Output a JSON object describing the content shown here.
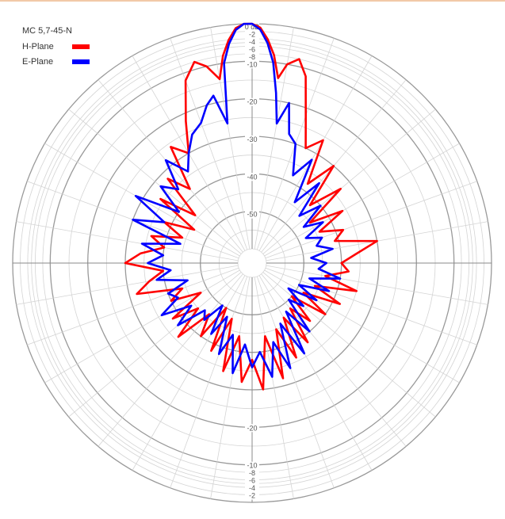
{
  "chart_data": {
    "type": "polar-line",
    "title": "MC 5,7-45-N",
    "radial_axis": {
      "unit": "dB",
      "range_db": [
        -60,
        0
      ],
      "upper_tick_labels": [
        "0 dB",
        "-2",
        "-4",
        "-6",
        "-8",
        "-10",
        "-20",
        "-30",
        "-40",
        "-50"
      ],
      "upper_tick_values": [
        0,
        -2,
        -4,
        -6,
        -8,
        -10,
        -20,
        -30,
        -40,
        -50
      ],
      "lower_tick_labels": [
        "-20",
        "-10",
        "-8",
        "-6",
        "-4",
        "-2"
      ],
      "lower_tick_values": [
        -20,
        -10,
        -8,
        -6,
        -4,
        -2
      ]
    },
    "angular_grid_step_deg": 10,
    "grid": true,
    "legend_position": "top-left",
    "series": [
      {
        "name": "H-Plane",
        "color": "#ff0000",
        "angles_deg": [
          0,
          2,
          4,
          6,
          8,
          10,
          13,
          16,
          20,
          25,
          30,
          35,
          40,
          45,
          50,
          55,
          60,
          65,
          70,
          75,
          80,
          85,
          90,
          95,
          100,
          105,
          110,
          115,
          120,
          125,
          130,
          135,
          140,
          145,
          150,
          155,
          160,
          165,
          170,
          175,
          180,
          185,
          190,
          195,
          200,
          205,
          210,
          215,
          220,
          225,
          230,
          235,
          240,
          245,
          250,
          255,
          260,
          265,
          270,
          275,
          280,
          285,
          290,
          295,
          300,
          305,
          310,
          315,
          320,
          325,
          330,
          335,
          340,
          344,
          347,
          350,
          352,
          354,
          356,
          358
        ],
        "gain_db": [
          0,
          -1,
          -4,
          -8,
          -14,
          -10,
          -8,
          -12,
          -22,
          -30,
          -26,
          -38,
          -30,
          -42,
          -33,
          -45,
          -36,
          -44,
          -38,
          -41,
          -30,
          -36,
          -40,
          -38,
          -44,
          -35,
          -46,
          -38,
          -48,
          -40,
          -50,
          -42,
          -48,
          -38,
          -47,
          -36,
          -45,
          -32,
          -44,
          -30,
          -38,
          -32,
          -44,
          -34,
          -48,
          -38,
          -50,
          -40,
          -46,
          -36,
          -45,
          -38,
          -48,
          -40,
          -44,
          -32,
          -36,
          -40,
          -30,
          -34,
          -40,
          -36,
          -44,
          -38,
          -46,
          -34,
          -44,
          -32,
          -38,
          -26,
          -30,
          -22,
          -12,
          -8,
          -10,
          -14,
          -8,
          -4,
          -1,
          0
        ]
      },
      {
        "name": "E-Plane",
        "color": "#0000ff",
        "angles_deg": [
          0,
          2,
          4,
          6,
          8,
          10,
          13,
          16,
          20,
          25,
          30,
          35,
          40,
          45,
          50,
          55,
          60,
          65,
          70,
          75,
          80,
          85,
          90,
          95,
          100,
          105,
          110,
          115,
          120,
          125,
          130,
          135,
          140,
          145,
          150,
          155,
          160,
          165,
          170,
          175,
          180,
          185,
          190,
          195,
          200,
          205,
          210,
          215,
          220,
          225,
          230,
          235,
          240,
          245,
          250,
          255,
          260,
          265,
          270,
          275,
          280,
          285,
          290,
          295,
          300,
          305,
          310,
          315,
          320,
          325,
          330,
          335,
          340,
          344,
          347,
          350,
          352,
          354,
          356,
          358
        ],
        "gain_db": [
          0,
          -1.5,
          -5,
          -10,
          -18,
          -26,
          -20,
          -28,
          -30,
          -38,
          -32,
          -44,
          -36,
          -46,
          -40,
          -47,
          -42,
          -48,
          -44,
          -46,
          -42,
          -48,
          -44,
          -46,
          -40,
          -48,
          -42,
          -50,
          -44,
          -52,
          -46,
          -50,
          -40,
          -48,
          -36,
          -46,
          -34,
          -42,
          -33,
          -40,
          -36,
          -42,
          -34,
          -44,
          -38,
          -48,
          -42,
          -50,
          -44,
          -46,
          -38,
          -44,
          -36,
          -42,
          -40,
          -46,
          -38,
          -42,
          -36,
          -40,
          -34,
          -44,
          -30,
          -38,
          -28,
          -40,
          -32,
          -36,
          -28,
          -34,
          -30,
          -26,
          -24,
          -20,
          -18,
          -26,
          -10,
          -5,
          -1.5,
          0
        ]
      }
    ]
  }
}
